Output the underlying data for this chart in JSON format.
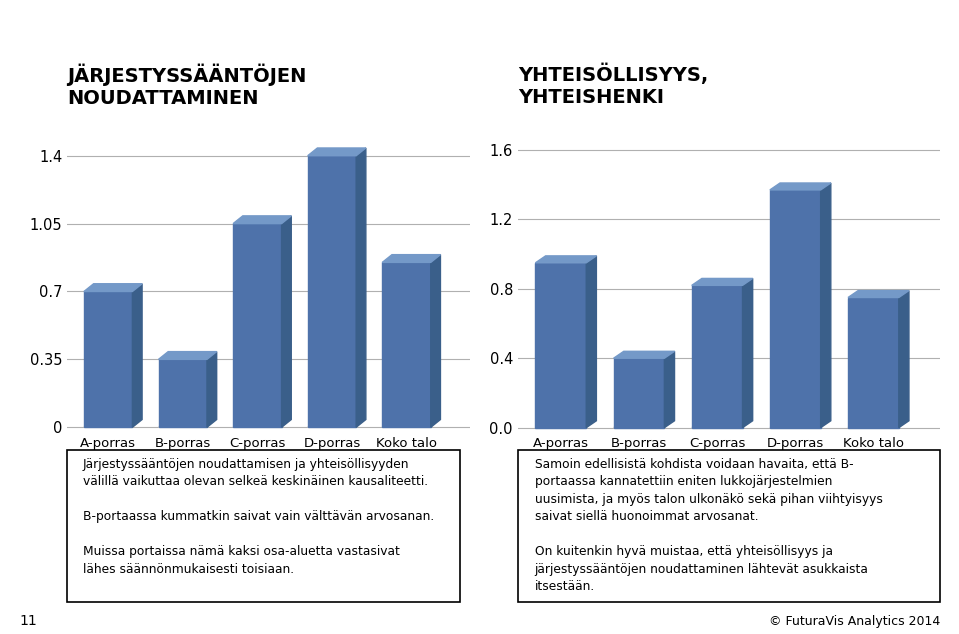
{
  "chart1_title": "JÄRJESTYSSÄÄNTÖJEN\nNOUDATTAMINEN",
  "chart2_title": "YHTEISÖLLISYYS,\nYHTEISHENKI",
  "categories": [
    "A-porras",
    "B-porras",
    "C-porras",
    "D-porras",
    "Koko talo"
  ],
  "chart1_values": [
    0.7,
    0.35,
    1.05,
    1.4,
    0.85
  ],
  "chart2_values": [
    0.95,
    0.4,
    0.82,
    1.37,
    0.75
  ],
  "chart1_yticks": [
    0,
    0.35,
    0.7,
    1.05,
    1.4
  ],
  "chart1_ytick_labels": [
    "0",
    "0.35",
    "0.7",
    "1.05",
    "1.4"
  ],
  "chart2_yticks": [
    0.0,
    0.4,
    0.8,
    1.2,
    1.6
  ],
  "chart2_ytick_labels": [
    "0.0",
    "0.4",
    "0.8",
    "1.2",
    "1.6"
  ],
  "bar_color_front": "#4e72aa",
  "bar_color_top": "#7499c8",
  "bar_color_side": "#3a5f8a",
  "bar_color_shadow": "#cccccc",
  "background_color": "#ffffff",
  "text_color": "#000000",
  "title_fontsize": 14,
  "tick_fontsize": 10.5,
  "label_fontsize": 9.5,
  "page_number": "11",
  "footer_text": "© FuturaVis Analytics 2014",
  "text_box1_lines": [
    "Järjestyssääntöjen noudattamisen ja yhteisöllisyyden",
    "välillä vaikuttaa olevan selkeä keskinäinen kausaliteetti.",
    "",
    "B-portaassa kummatkin saivat vain välttävän arvosanan.",
    "",
    "Muissa portaissa nämä kaksi osa-aluetta vastasivat",
    "lähes säännönmukaisesti toisiaan."
  ],
  "text_box2_lines": [
    "Samoin edellisistä kohdista voidaan havaita, että B-",
    "portaassa kannatettiin eniten lukkojärjestelmien",
    "uusimista, ja myös talon ulkonäkö sekä pihan viihtyisyys",
    "saivat siellä huonoimmat arvosanat.",
    "",
    "On kuitenkin hyvä muistaa, että yhteisöllisyys ja",
    "järjestyssääntöjen noudattaminen lähtevät asukkaista",
    "itsestään."
  ]
}
